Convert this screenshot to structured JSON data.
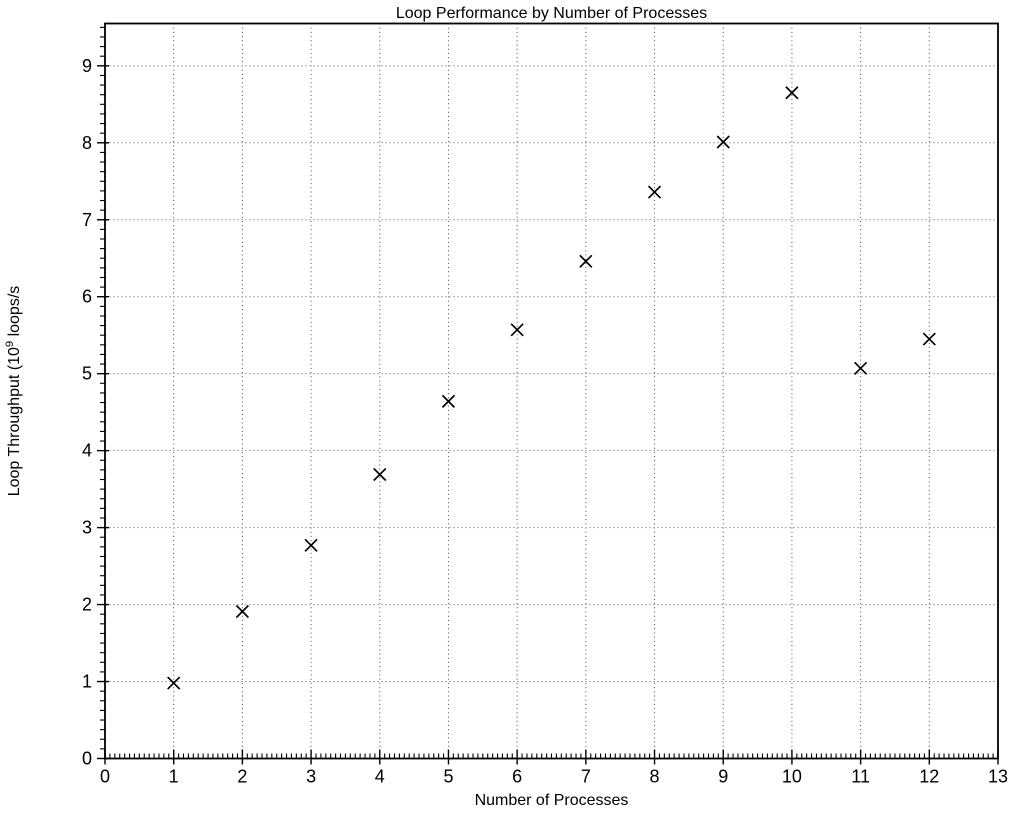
{
  "chart_data": {
    "type": "scatter",
    "title": "Loop Performance by Number of Processes",
    "xlabel": "Number of Processes",
    "ylabel": "Loop Throughput (10⁹ loops/s",
    "ylabel_parts": {
      "prefix": "Loop Throughput (10",
      "superscript": "9",
      "suffix": " loops/s"
    },
    "x": [
      1,
      2,
      3,
      4,
      5,
      6,
      7,
      8,
      9,
      10,
      11,
      12
    ],
    "y": [
      0.98,
      1.91,
      2.77,
      3.69,
      4.64,
      5.57,
      6.46,
      7.36,
      8.01,
      8.65,
      5.07,
      5.45
    ],
    "xlim": [
      0,
      13
    ],
    "ylim": [
      0,
      9.55
    ],
    "x_major_ticks": [
      0,
      1,
      2,
      3,
      4,
      5,
      6,
      7,
      8,
      9,
      10,
      11,
      12,
      13
    ],
    "y_major_ticks": [
      0,
      1,
      2,
      3,
      4,
      5,
      6,
      7,
      8,
      9
    ],
    "x_tick_labels": [
      "0",
      "1",
      "2",
      "3",
      "4",
      "5",
      "6",
      "7",
      "8",
      "9",
      "10",
      "11",
      "12",
      "13"
    ],
    "y_tick_labels": [
      "0",
      "1",
      "2",
      "3",
      "4",
      "5",
      "6",
      "7",
      "8",
      "9"
    ],
    "x_minor_per_major": 14,
    "y_minor_per_major": 8,
    "grid": true,
    "legend": null,
    "marker": "x",
    "colors": {
      "background": "#ffffff",
      "marker": "#000000",
      "axis": "#000000",
      "grid_vertical": "#4a4a4a",
      "grid_horizontal": "#aaaaaa",
      "tick_label": "#000000"
    }
  }
}
